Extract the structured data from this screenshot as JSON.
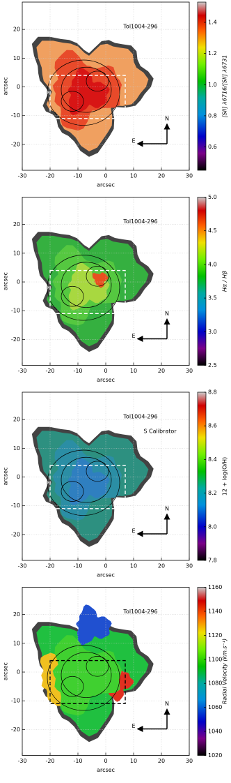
{
  "chart_data": [
    {
      "type": "heatmap",
      "title": "Tol1004-296",
      "xlabel": "arcsec",
      "ylabel": "arcsec",
      "xlim": [
        -30,
        30
      ],
      "xticks": [
        -30,
        -20,
        -10,
        0,
        10,
        20,
        30
      ],
      "ylim": [
        -29,
        29.5
      ],
      "yticks": [
        -20,
        -10,
        0,
        10,
        20
      ],
      "grid": true,
      "north_label": "N",
      "east_label": "E",
      "colormap": "nipy_spectral",
      "colorbar": {
        "label": "[SII] λ6716/[SII] λ6731",
        "lim": [
          0.45,
          1.53
        ],
        "ticks": [
          0.6,
          0.8,
          {
            "value": 1,
            "label": "1.0"
          },
          1.2,
          1.4
        ]
      }
    },
    {
      "type": "heatmap",
      "title": "Tol1004-296",
      "xlabel": "arcsec",
      "ylabel": "arcsec",
      "xlim": [
        -30,
        30
      ],
      "xticks": [
        -30,
        -20,
        -10,
        0,
        10,
        20,
        30
      ],
      "ylim": [
        -29,
        29.5
      ],
      "yticks": [
        -20,
        -10,
        0,
        10,
        20
      ],
      "grid": true,
      "north_label": "N",
      "east_label": "E",
      "colormap": "nipy_spectral",
      "colorbar": {
        "label": "Hα / Hβ",
        "lim": [
          2.5,
          5
        ],
        "ticks": [
          2.5,
          {
            "value": 3,
            "label": "3.0"
          },
          3.5,
          {
            "value": 4,
            "label": "4.0"
          },
          4.5,
          {
            "value": 5,
            "label": "5.0"
          }
        ]
      }
    },
    {
      "type": "heatmap",
      "title": "Tol1004-296",
      "annotation": "S Calibrator",
      "xlabel": "arcsec",
      "ylabel": "arcsec",
      "xlim": [
        -30,
        30
      ],
      "xticks": [
        -30,
        -20,
        -10,
        0,
        10,
        20,
        30
      ],
      "ylim": [
        -29,
        29.5
      ],
      "yticks": [
        -20,
        -10,
        0,
        10,
        20
      ],
      "grid": true,
      "north_label": "N",
      "east_label": "E",
      "colormap": "nipy_spectral",
      "colorbar": {
        "label": "12 + log(O/H)",
        "lim": [
          7.8,
          8.8
        ],
        "ticks": [
          7.8,
          {
            "value": 8,
            "label": "8.0"
          },
          8.2,
          8.4,
          8.6,
          8.8
        ]
      }
    },
    {
      "type": "heatmap",
      "title": "Tol1004-296",
      "xlabel": "arcsec",
      "ylabel": "arcsec",
      "xlim": [
        -30,
        30
      ],
      "xticks": [
        -30,
        -20,
        -10,
        0,
        10,
        20,
        30
      ],
      "ylim": [
        -29,
        29.5
      ],
      "yticks": [
        -20,
        -10,
        0,
        10,
        20
      ],
      "grid": true,
      "north_label": "N",
      "east_label": "E",
      "colormap": "nipy_spectral",
      "colorbar": {
        "label": "Radial Velocity (km.s⁻¹)",
        "lim": [
          1020,
          1160
        ],
        "ticks": [
          1020,
          1040,
          1060,
          1080,
          1100,
          1120,
          1140,
          1160
        ]
      }
    }
  ]
}
